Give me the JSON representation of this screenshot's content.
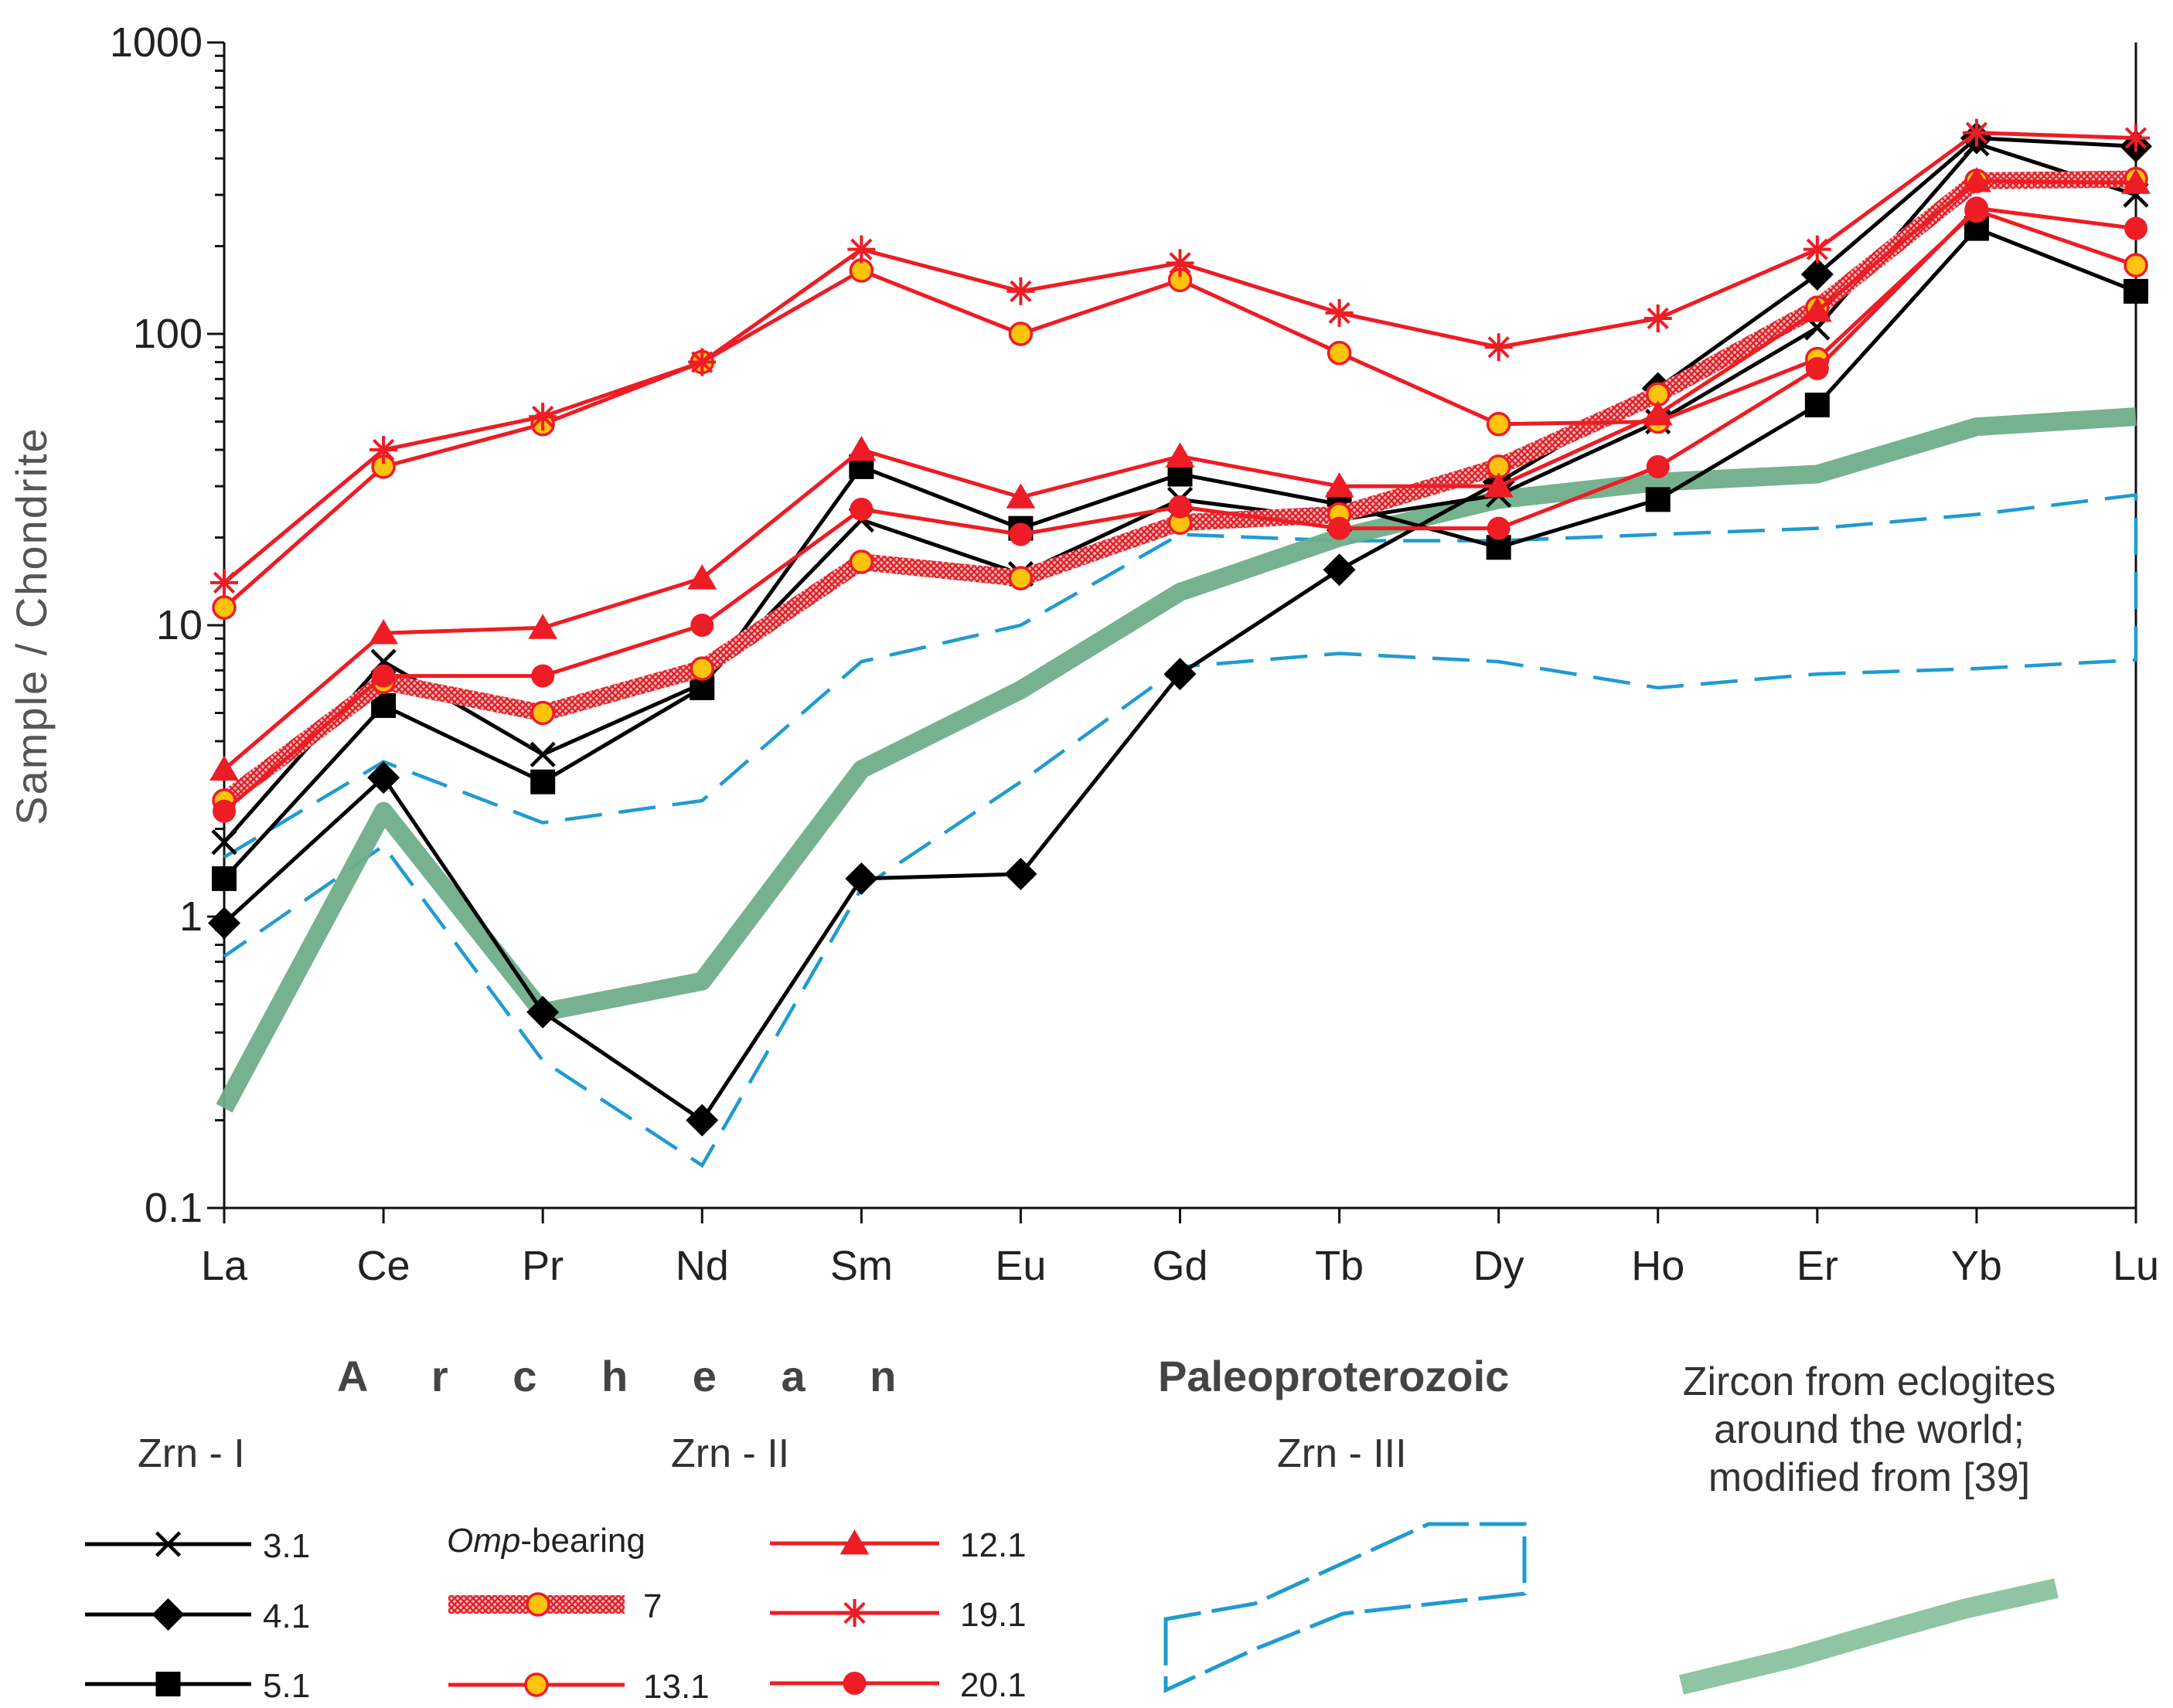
{
  "chart_data": {
    "type": "line",
    "yscale": "log",
    "ylabel": "Sample / Chondrite",
    "ylim": [
      0.1,
      1000
    ],
    "yticks": [
      "0.1",
      "1",
      "10",
      "100",
      "1000"
    ],
    "categories": [
      "La",
      "Ce",
      "Pr",
      "Nd",
      "Sm",
      "Eu",
      "Gd",
      "Tb",
      "Dy",
      "Ho",
      "Er",
      "Yb",
      "Lu"
    ],
    "series": [
      {
        "name": "3.1",
        "group": "Zrn - I",
        "color": "#000000",
        "marker": "x",
        "values": [
          1.8,
          7.5,
          3.6,
          6.3,
          23,
          15,
          27,
          23,
          28,
          50,
          105,
          450,
          300
        ]
      },
      {
        "name": "4.1",
        "group": "Zrn - I",
        "color": "#000000",
        "marker": "diamond",
        "values": [
          0.95,
          3.0,
          0.47,
          0.2,
          1.35,
          1.4,
          6.8,
          15.5,
          31,
          65,
          160,
          470,
          440
        ]
      },
      {
        "name": "5.1",
        "group": "Zrn - I",
        "color": "#000000",
        "marker": "square",
        "values": [
          1.35,
          5.3,
          2.9,
          6.1,
          35,
          21.5,
          33,
          26,
          18.5,
          27,
          57,
          230,
          140
        ]
      },
      {
        "name": "7",
        "group": "Zrn - II",
        "note": "Omp-bearing",
        "color": "#ee1c24",
        "marker": "circle-yellow",
        "thick": true,
        "values": [
          2.5,
          6.4,
          5.0,
          7.1,
          16.5,
          14.5,
          22.5,
          24,
          35,
          62,
          123,
          335,
          340
        ]
      },
      {
        "name": "13.1",
        "group": "Zrn - II",
        "color": "#ee1c24",
        "marker": "circle-yellow",
        "values": [
          11.5,
          35,
          49,
          80,
          165,
          100,
          153,
          86,
          49,
          50,
          82,
          265,
          172
        ]
      },
      {
        "name": "12.1",
        "group": "Zrn - II",
        "color": "#ee1c24",
        "marker": "triangle",
        "values": [
          3.2,
          9.4,
          9.8,
          14.5,
          40,
          27.5,
          38,
          30,
          30,
          53,
          120,
          335,
          330
        ]
      },
      {
        "name": "19.1",
        "group": "Zrn - II",
        "color": "#ee1c24",
        "marker": "asterisk",
        "values": [
          14,
          40,
          52,
          80,
          195,
          140,
          175,
          118,
          90,
          113,
          195,
          490,
          470
        ]
      },
      {
        "name": "20.1",
        "group": "Zrn - II",
        "color": "#ee1c24",
        "marker": "circle",
        "values": [
          2.3,
          6.7,
          6.7,
          10,
          25,
          20.5,
          25.5,
          21.5,
          21.5,
          35,
          76,
          270,
          230
        ]
      }
    ],
    "envelope": {
      "name": "Zrn - III",
      "color": "#1f9bd1",
      "upper": [
        1.6,
        3.4,
        2.1,
        2.5,
        7.5,
        10,
        20.5,
        19.5,
        19.5,
        20.5,
        21.5,
        24,
        28
      ],
      "lower": [
        0.73,
        1.75,
        0.32,
        0.14,
        1.25,
        2.9,
        7.2,
        8,
        7.5,
        6.1,
        6.8,
        7.1,
        7.6
      ]
    },
    "reference": {
      "name": "Zircon from eclogites around the world; modified from [39]",
      "color": "#6fae8a",
      "values": [
        0.22,
        2.3,
        0.47,
        0.6,
        3.2,
        6,
        13,
        20,
        27,
        31,
        33,
        48,
        52
      ]
    }
  },
  "legend": {
    "archean_title": "A r c h e a n",
    "paleo_title": "Paleoproterozoic",
    "zrn1": "Zrn - I",
    "zrn2": "Zrn - II",
    "zrn3": "Zrn - III",
    "omp_italic": "Omp",
    "omp_rest": "-bearing",
    "ref_line1": "Zircon from eclogites",
    "ref_line2": "around the world;",
    "ref_line3": "modified from [39]",
    "labels": [
      "3.1",
      "4.1",
      "5.1",
      "7",
      "13.1",
      "12.1",
      "19.1",
      "20.1"
    ]
  }
}
